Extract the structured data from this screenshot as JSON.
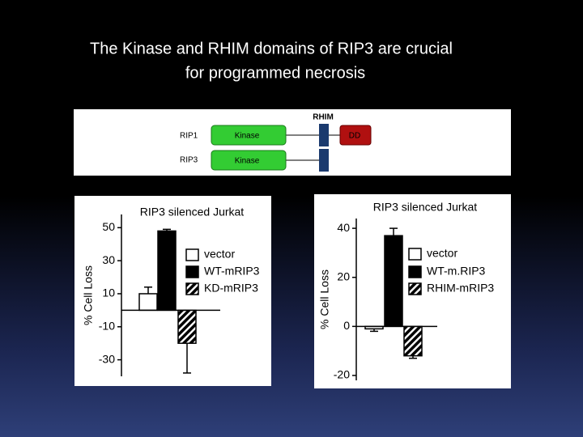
{
  "title": [
    "The Kinase and RHIM domains of RIP3 are crucial",
    "for programmed necrosis"
  ],
  "diagram": {
    "rhim": "RHIM",
    "rows": [
      {
        "name": "RIP1",
        "kinase": "Kinase",
        "dd": "DD"
      },
      {
        "name": "RIP3",
        "kinase": "Kinase"
      }
    ]
  },
  "chart_data": [
    {
      "type": "bar",
      "title": "RIP3 silenced Jurkat",
      "y_label": "% Cell Loss",
      "ylim": [
        -40,
        58
      ],
      "yticks": [
        50,
        30,
        10,
        -10,
        -30
      ],
      "series": [
        {
          "name": "vector",
          "color": "#ffffff",
          "values": [
            10
          ],
          "errors": [
            4
          ]
        },
        {
          "name": "WT-mRIP3",
          "color": "#000000",
          "values": [
            48
          ],
          "errors": [
            1
          ]
        },
        {
          "name": "KD-mRIP3",
          "color": "#000000",
          "pattern": "hatched",
          "values": [
            -20
          ],
          "errors": [
            18
          ]
        }
      ]
    },
    {
      "type": "bar",
      "title": "RIP3 silenced Jurkat",
      "y_label": "% Cell Loss",
      "ylim": [
        -22,
        44
      ],
      "yticks": [
        40,
        20,
        0,
        -20
      ],
      "series": [
        {
          "name": "vector",
          "color": "#ffffff",
          "values": [
            -1
          ],
          "errors": [
            1
          ]
        },
        {
          "name": "WT-m.RIP3",
          "color": "#000000",
          "values": [
            37
          ],
          "errors": [
            3
          ]
        },
        {
          "name": "RHIM-mRIP3",
          "color": "#000000",
          "pattern": "hatched",
          "values": [
            -12
          ],
          "errors": [
            1
          ]
        }
      ]
    }
  ]
}
